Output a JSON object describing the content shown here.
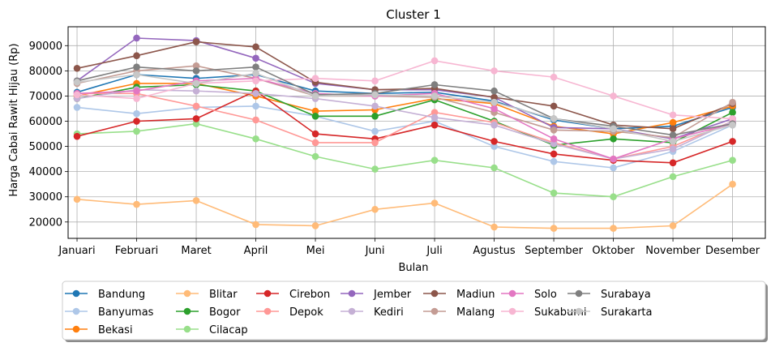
{
  "chart_data": {
    "type": "line",
    "title": "Cluster 1",
    "xlabel": "Bulan",
    "ylabel": "Harga Cabai Rawit Hijau (Rp)",
    "categories": [
      "Januari",
      "Februari",
      "Maret",
      "April",
      "Mei",
      "Juni",
      "Juli",
      "Agustus",
      "September",
      "Oktober",
      "November",
      "Desember"
    ],
    "ylim": [
      13500,
      97500
    ],
    "yticks": [
      20000,
      30000,
      40000,
      50000,
      60000,
      70000,
      80000,
      90000
    ],
    "ytick_labels": [
      "20000",
      "30000",
      "40000",
      "50000",
      "60000",
      "70000",
      "80000",
      "90000"
    ],
    "grid": true,
    "legend_position": "bottom",
    "series": [
      {
        "name": "Bandung",
        "color": "#1f77b4",
        "values": [
          71500,
          78500,
          77000,
          78500,
          72000,
          71000,
          71500,
          68000,
          60500,
          57000,
          58000,
          65500
        ]
      },
      {
        "name": "Banyumas",
        "color": "#aec7e8",
        "values": [
          65500,
          63000,
          65500,
          66000,
          62000,
          56000,
          60000,
          50000,
          44000,
          41500,
          48000,
          58500
        ]
      },
      {
        "name": "Bekasi",
        "color": "#ff7f0e",
        "values": [
          70000,
          75000,
          75000,
          70000,
          64000,
          64500,
          69000,
          67000,
          58000,
          55000,
          59500,
          66000
        ]
      },
      {
        "name": "Blitar",
        "color": "#ffbb78",
        "values": [
          29000,
          27000,
          28500,
          19000,
          18500,
          25000,
          27500,
          18000,
          17500,
          17500,
          18500,
          35000
        ]
      },
      {
        "name": "Bogor",
        "color": "#2ca02c",
        "values": [
          69000,
          73500,
          74500,
          72000,
          62000,
          62000,
          68500,
          60000,
          50500,
          53000,
          51500,
          63500
        ]
      },
      {
        "name": "Cilacap",
        "color": "#98df8a",
        "values": [
          55000,
          56000,
          59000,
          53000,
          46000,
          41000,
          44500,
          41500,
          31500,
          30000,
          38000,
          44500
        ]
      },
      {
        "name": "Cirebon",
        "color": "#d62728",
        "values": [
          54000,
          60000,
          61000,
          72000,
          55000,
          53000,
          58500,
          52000,
          47000,
          44500,
          43500,
          52000
        ]
      },
      {
        "name": "Depok",
        "color": "#ff9896",
        "values": [
          71000,
          71000,
          66000,
          60500,
          51500,
          51500,
          63500,
          59500,
          51500,
          45000,
          50000,
          60000
        ]
      },
      {
        "name": "Jember",
        "color": "#9467bd",
        "values": [
          76000,
          93000,
          92000,
          85000,
          75000,
          72500,
          72500,
          69500,
          57500,
          57000,
          53000,
          61000
        ]
      },
      {
        "name": "Kediri",
        "color": "#c5b0d5",
        "values": [
          69000,
          72500,
          72000,
          71000,
          69000,
          66000,
          61500,
          58500,
          51000,
          45000,
          49000,
          60000
        ]
      },
      {
        "name": "Madiun",
        "color": "#8c564b",
        "values": [
          81000,
          86000,
          91500,
          89500,
          75500,
          72500,
          73000,
          69500,
          66000,
          58500,
          57000,
          67000
        ]
      },
      {
        "name": "Malang",
        "color": "#c49c94",
        "values": [
          75000,
          80000,
          82000,
          77000,
          70000,
          70000,
          69500,
          63500,
          56500,
          56000,
          53500,
          67500
        ]
      },
      {
        "name": "Solo",
        "color": "#e377c2",
        "values": [
          71000,
          72000,
          76000,
          77000,
          71000,
          70000,
          71000,
          65000,
          53000,
          45000,
          53000,
          59000
        ]
      },
      {
        "name": "Sukabumi",
        "color": "#f7b6d2",
        "values": [
          70500,
          69000,
          75000,
          76000,
          77000,
          76000,
          84000,
          80000,
          77500,
          70000,
          62500,
          61000
        ]
      },
      {
        "name": "Surabaya",
        "color": "#7f7f7f",
        "values": [
          76000,
          81500,
          80000,
          81500,
          70500,
          71000,
          74500,
          72000,
          61000,
          58000,
          54500,
          59000
        ]
      },
      {
        "name": "Surakarta",
        "color": "#c7c7c7",
        "values": [
          75500,
          78500,
          75000,
          79000,
          70000,
          70500,
          70000,
          67500,
          61000,
          57000,
          52000,
          58500
        ]
      }
    ]
  }
}
